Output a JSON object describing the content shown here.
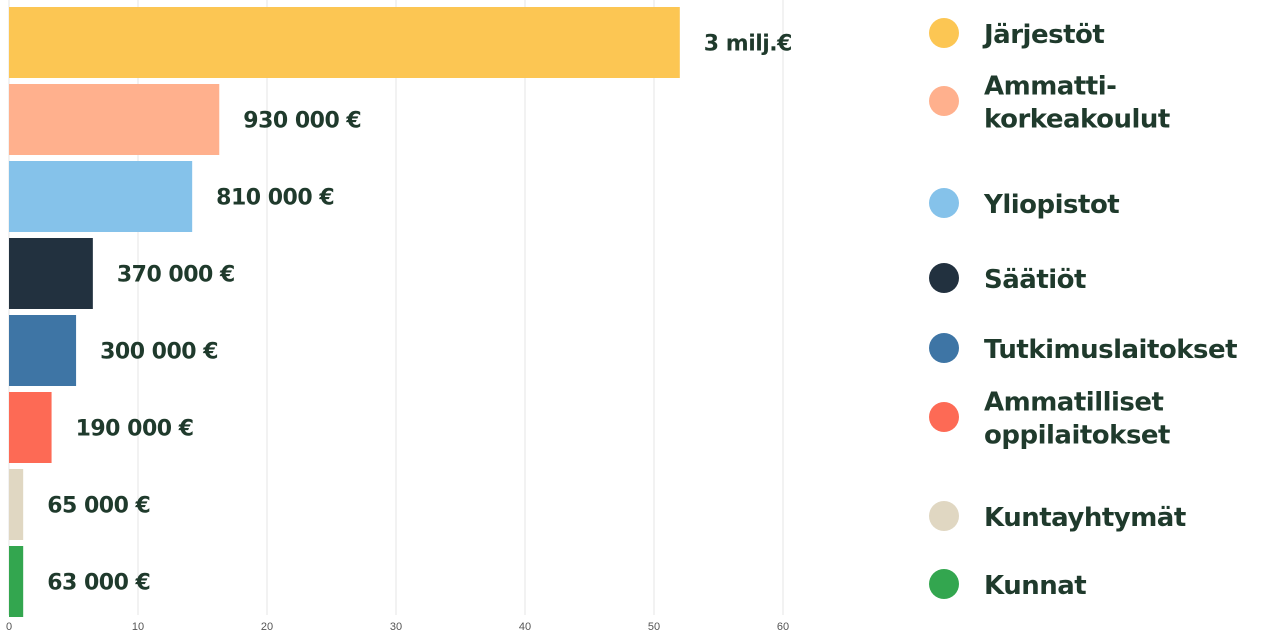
{
  "chart_data": {
    "type": "bar",
    "orientation": "horizontal",
    "categories": [
      "Järjestöt",
      "Ammatti-korkeakoulut",
      "Yliopistot",
      "Säätiöt",
      "Tutkimuslaitokset",
      "Ammatilliset oppilaitokset",
      "Kuntayhtymät",
      "Kunnat"
    ],
    "values": [
      52,
      16.3,
      14.2,
      6.5,
      5.2,
      3.3,
      1.1,
      1.1
    ],
    "value_labels": [
      "3 milj.€",
      "930 000 €",
      "810 000 €",
      "370 000 €",
      "300 000 €",
      "190 000 €",
      "65 000 €",
      "63 000 €"
    ],
    "colors": [
      "#fcc653",
      "#ffb08d",
      "#85c2ea",
      "#22313f",
      "#3e75a5",
      "#fd6a55",
      "#e0d7c2",
      "#33a64f"
    ],
    "xlim": [
      0,
      65
    ],
    "xticks": [
      0,
      10,
      20,
      30,
      40,
      50,
      60
    ],
    "grid": true,
    "legend": {
      "placement": "right",
      "entries": [
        {
          "lines": [
            "Järjestöt"
          ],
          "color": "#fcc653"
        },
        {
          "lines": [
            "Ammatti-",
            "korkeakoulut"
          ],
          "color": "#ffb08d"
        },
        {
          "lines": [
            "Yliopistot"
          ],
          "color": "#85c2ea"
        },
        {
          "lines": [
            "Säätiöt"
          ],
          "color": "#22313f"
        },
        {
          "lines": [
            "Tutkimuslaitokset"
          ],
          "color": "#3e75a5"
        },
        {
          "lines": [
            "Ammatilliset",
            "oppilaitokset"
          ],
          "color": "#fd6a55"
        },
        {
          "lines": [
            "Kuntayhtymät"
          ],
          "color": "#e0d7c2"
        },
        {
          "lines": [
            "Kunnat"
          ],
          "color": "#33a64f"
        }
      ]
    }
  }
}
